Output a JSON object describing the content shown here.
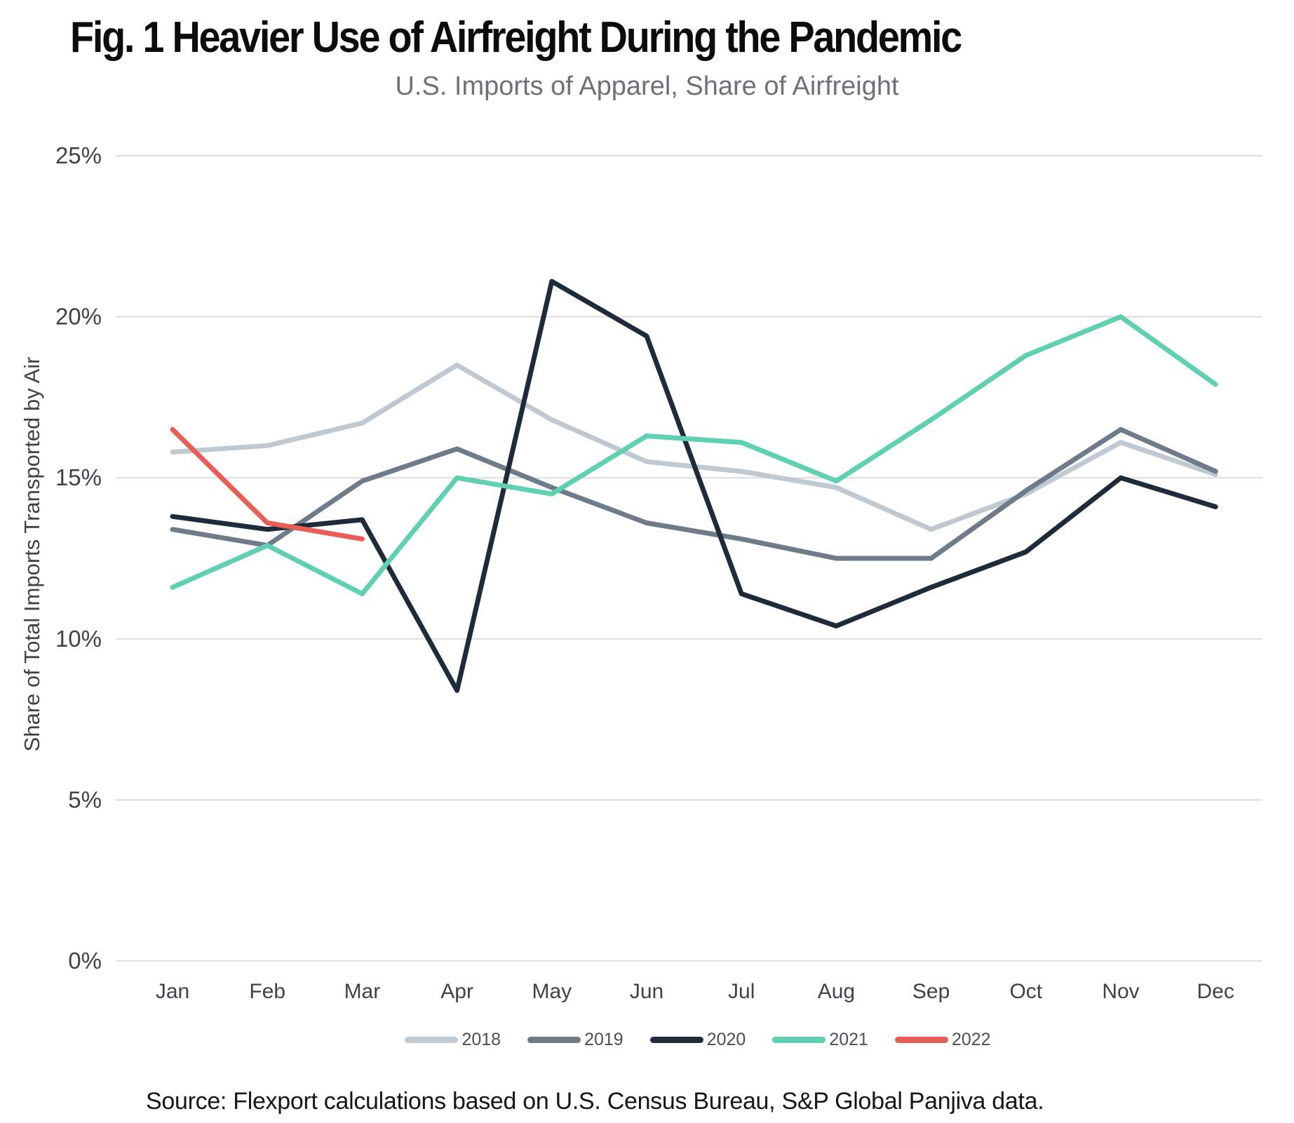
{
  "title": "Fig. 1 Heavier Use of Airfreight During the Pandemic",
  "subtitle": "U.S. Imports of Apparel, Share of Airfreight",
  "source": "Source: Flexport calculations based on U.S. Census Bureau, S&P Global Panjiva data.",
  "colors": {
    "grid": "#dcdee0",
    "axis_text": "#3f4347",
    "legend_text": "#4b5055",
    "title_text": "#0b0c0e",
    "subtitle_text": "#6d7276"
  },
  "chart_data": {
    "type": "line",
    "title": "Fig. 1 Heavier Use of Airfreight During the Pandemic",
    "subtitle": "U.S. Imports of Apparel, Share of Airfreight",
    "xlabel": "",
    "ylabel": "Share of Total Imports Transported by Air",
    "ylim": [
      0,
      25
    ],
    "grid": true,
    "legend_position": "bottom",
    "categories": [
      "Jan",
      "Feb",
      "Mar",
      "Apr",
      "May",
      "Jun",
      "Jul",
      "Aug",
      "Sep",
      "Oct",
      "Nov",
      "Dec"
    ],
    "yticks": [
      {
        "label": "0%",
        "value": 0
      },
      {
        "label": "5%",
        "value": 5
      },
      {
        "label": "10%",
        "value": 10
      },
      {
        "label": "15%",
        "value": 15
      },
      {
        "label": "20%",
        "value": 20
      },
      {
        "label": "25%",
        "value": 25
      }
    ],
    "series": [
      {
        "name": "2018",
        "color": "#bfc9d2",
        "values": [
          15.8,
          16.0,
          16.7,
          18.5,
          16.8,
          15.5,
          15.2,
          14.7,
          13.4,
          14.5,
          16.1,
          15.1
        ]
      },
      {
        "name": "2019",
        "color": "#6e7b8a",
        "values": [
          13.4,
          12.9,
          14.9,
          15.9,
          14.7,
          13.6,
          13.1,
          12.5,
          12.5,
          14.6,
          16.5,
          15.2
        ]
      },
      {
        "name": "2020",
        "color": "#1e2b3a",
        "values": [
          13.8,
          13.4,
          13.7,
          8.4,
          21.1,
          19.4,
          11.4,
          10.4,
          11.6,
          12.7,
          15.0,
          14.1
        ]
      },
      {
        "name": "2021",
        "color": "#5fd0b1",
        "values": [
          11.6,
          12.9,
          11.4,
          15.0,
          14.5,
          16.3,
          16.1,
          14.9,
          16.8,
          18.8,
          20.0,
          17.9
        ]
      },
      {
        "name": "2022",
        "color": "#e95d57",
        "values": [
          16.5,
          13.6,
          13.1
        ]
      }
    ]
  }
}
